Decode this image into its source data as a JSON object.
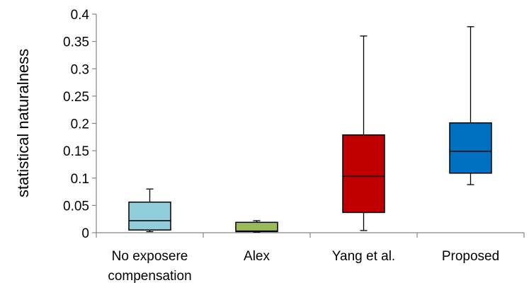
{
  "chart_data": {
    "type": "boxplot",
    "title": "",
    "xlabel": "",
    "ylabel": "statistical naturalness",
    "ylim": [
      0,
      0.4
    ],
    "yticks": [
      0,
      0.05,
      0.1,
      0.15,
      0.2,
      0.25,
      0.3,
      0.35,
      0.4
    ],
    "ytick_labels": [
      "0",
      "0.05",
      "0.1",
      "0.15",
      "0.2",
      "0.25",
      "0.3",
      "0.35",
      "0.4"
    ],
    "grid": false,
    "legend": "none",
    "categories": [
      {
        "lines": [
          "No exposere",
          "compensation"
        ]
      },
      {
        "lines": [
          "Alex"
        ]
      },
      {
        "lines": [
          "Yang et al."
        ]
      },
      {
        "lines": [
          "Proposed"
        ]
      }
    ],
    "boxes": [
      {
        "min": 0.002,
        "q1": 0.005,
        "median": 0.022,
        "q3": 0.056,
        "max": 0.08,
        "color": "#92cddc"
      },
      {
        "min": 0.001,
        "q1": 0.002,
        "median": 0.003,
        "q3": 0.019,
        "max": 0.022,
        "color": "#9bbb59"
      },
      {
        "min": 0.004,
        "q1": 0.037,
        "median": 0.103,
        "q3": 0.179,
        "max": 0.36,
        "color": "#c00000"
      },
      {
        "min": 0.088,
        "q1": 0.109,
        "median": 0.149,
        "q3": 0.201,
        "max": 0.377,
        "color": "#0070c0"
      }
    ]
  }
}
